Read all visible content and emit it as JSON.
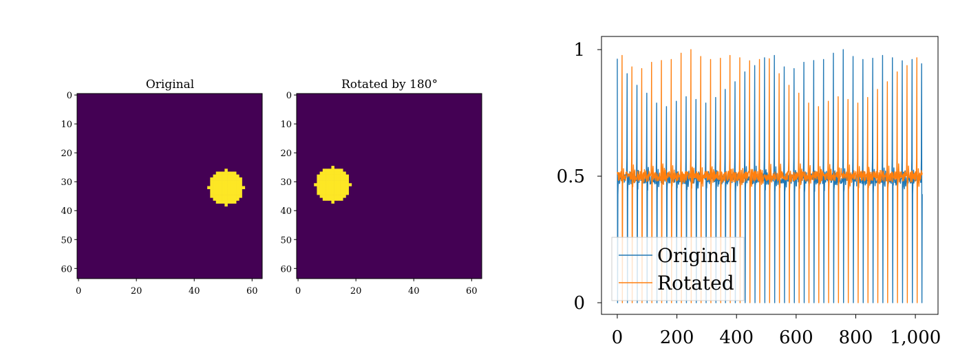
{
  "chart_data": [
    {
      "type": "heatmap",
      "title": "Original",
      "shape": [
        64,
        64
      ],
      "disc": {
        "center_col": 51,
        "center_row": 32,
        "radius": 6
      },
      "colors": {
        "low": "#440154",
        "high": "#fde725"
      },
      "xticks": [
        "0",
        "20",
        "40",
        "60"
      ],
      "yticks": [
        "0",
        "10",
        "20",
        "30",
        "40",
        "50",
        "60"
      ]
    },
    {
      "type": "heatmap",
      "title": "Rotated by 180°",
      "shape": [
        64,
        64
      ],
      "disc": {
        "center_col": 12,
        "center_row": 31,
        "radius": 6
      },
      "colors": {
        "low": "#440154",
        "high": "#fde725"
      },
      "xticks": [
        "0",
        "20",
        "40",
        "60"
      ],
      "yticks": [
        "0",
        "10",
        "20",
        "30",
        "40",
        "50",
        "60"
      ]
    },
    {
      "type": "line",
      "xlim": [
        -53,
        1076
      ],
      "ylim": [
        -0.046,
        1.052
      ],
      "xticks": [
        0,
        200,
        400,
        600,
        800,
        1000
      ],
      "xtick_labels": [
        "0",
        "200",
        "400",
        "600",
        "800",
        "1,000"
      ],
      "yticks": [
        0,
        0.5,
        1
      ],
      "ytick_labels": [
        "0",
        "0.5",
        "1"
      ],
      "legend_position": "lower-left",
      "baseline": 0.5,
      "series": [
        {
          "name": "Original",
          "color": "#1f77b4",
          "spike_start": 0,
          "spike_period": 32.95,
          "spike_peaks": [
            0.964,
            0.905,
            0.859,
            0.828,
            0.789,
            0.775,
            0.796,
            0.814,
            0.803,
            0.789,
            0.811,
            0.843,
            0.873,
            0.912,
            0.937,
            0.968,
            0.977,
            0.932,
            0.925,
            0.95,
            0.957,
            0.961,
            0.986,
            1.0,
            0.973,
            0.961,
            0.966,
            0.977,
            0.968,
            0.956,
            0.961,
            0.944
          ]
        },
        {
          "name": "Rotated",
          "color": "#ff7f0e",
          "spike_start": 16,
          "spike_period": 32.95,
          "spike_peaks": [
            0.977,
            0.932,
            0.925,
            0.95,
            0.957,
            0.961,
            0.986,
            1.0,
            0.973,
            0.961,
            0.966,
            0.977,
            0.968,
            0.956,
            0.961,
            0.964,
            0.905,
            0.859,
            0.828,
            0.789,
            0.775,
            0.796,
            0.814,
            0.803,
            0.789,
            0.811,
            0.843,
            0.873,
            0.912,
            0.937,
            0.968
          ]
        }
      ]
    }
  ]
}
